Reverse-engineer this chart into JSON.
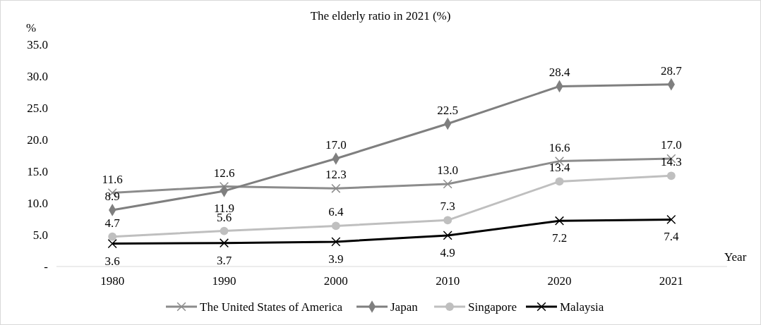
{
  "chart_data": {
    "type": "line",
    "title": "The elderly ratio in 2021 (%)",
    "ylabel": "%",
    "xlabel": "Year",
    "categories": [
      "1980",
      "1990",
      "2000",
      "2010",
      "2020",
      "2021"
    ],
    "ylim": [
      0,
      35
    ],
    "yticks": [
      {
        "value": 0,
        "label": "-"
      },
      {
        "value": 5,
        "label": "5.0"
      },
      {
        "value": 10,
        "label": "10.0"
      },
      {
        "value": 15,
        "label": "15.0"
      },
      {
        "value": 20,
        "label": "20.0"
      },
      {
        "value": 25,
        "label": "25.0"
      },
      {
        "value": 30,
        "label": "30.0"
      },
      {
        "value": 35,
        "label": "35.0"
      }
    ],
    "grid": false,
    "legend": "bottom",
    "series": [
      {
        "name": "The United States of America",
        "color": "#8c8c8c",
        "marker": "cross",
        "values": [
          11.6,
          12.6,
          12.3,
          13.0,
          16.6,
          17.0
        ],
        "value_labels": [
          "11.6",
          "12.6",
          "12.3",
          "13.0",
          "16.6",
          "17.0"
        ]
      },
      {
        "name": "Japan",
        "color": "#7f7f7f",
        "marker": "diamond",
        "values": [
          8.9,
          11.9,
          17.0,
          22.5,
          28.4,
          28.7
        ],
        "value_labels": [
          "8.9",
          "11.9",
          "17.0",
          "22.5",
          "28.4",
          "28.7"
        ]
      },
      {
        "name": "Singapore",
        "color": "#bfbfbf",
        "marker": "circle",
        "values": [
          4.7,
          5.6,
          6.4,
          7.3,
          13.4,
          14.3
        ],
        "value_labels": [
          "4.7",
          "5.6",
          "6.4",
          "7.3",
          "13.4",
          "14.3"
        ]
      },
      {
        "name": "Malaysia",
        "color": "#000000",
        "marker": "cross",
        "values": [
          3.6,
          3.7,
          3.9,
          4.9,
          7.2,
          7.4
        ],
        "value_labels": [
          "3.6",
          "3.7",
          "3.9",
          "4.9",
          "7.2",
          "7.4"
        ]
      }
    ]
  }
}
